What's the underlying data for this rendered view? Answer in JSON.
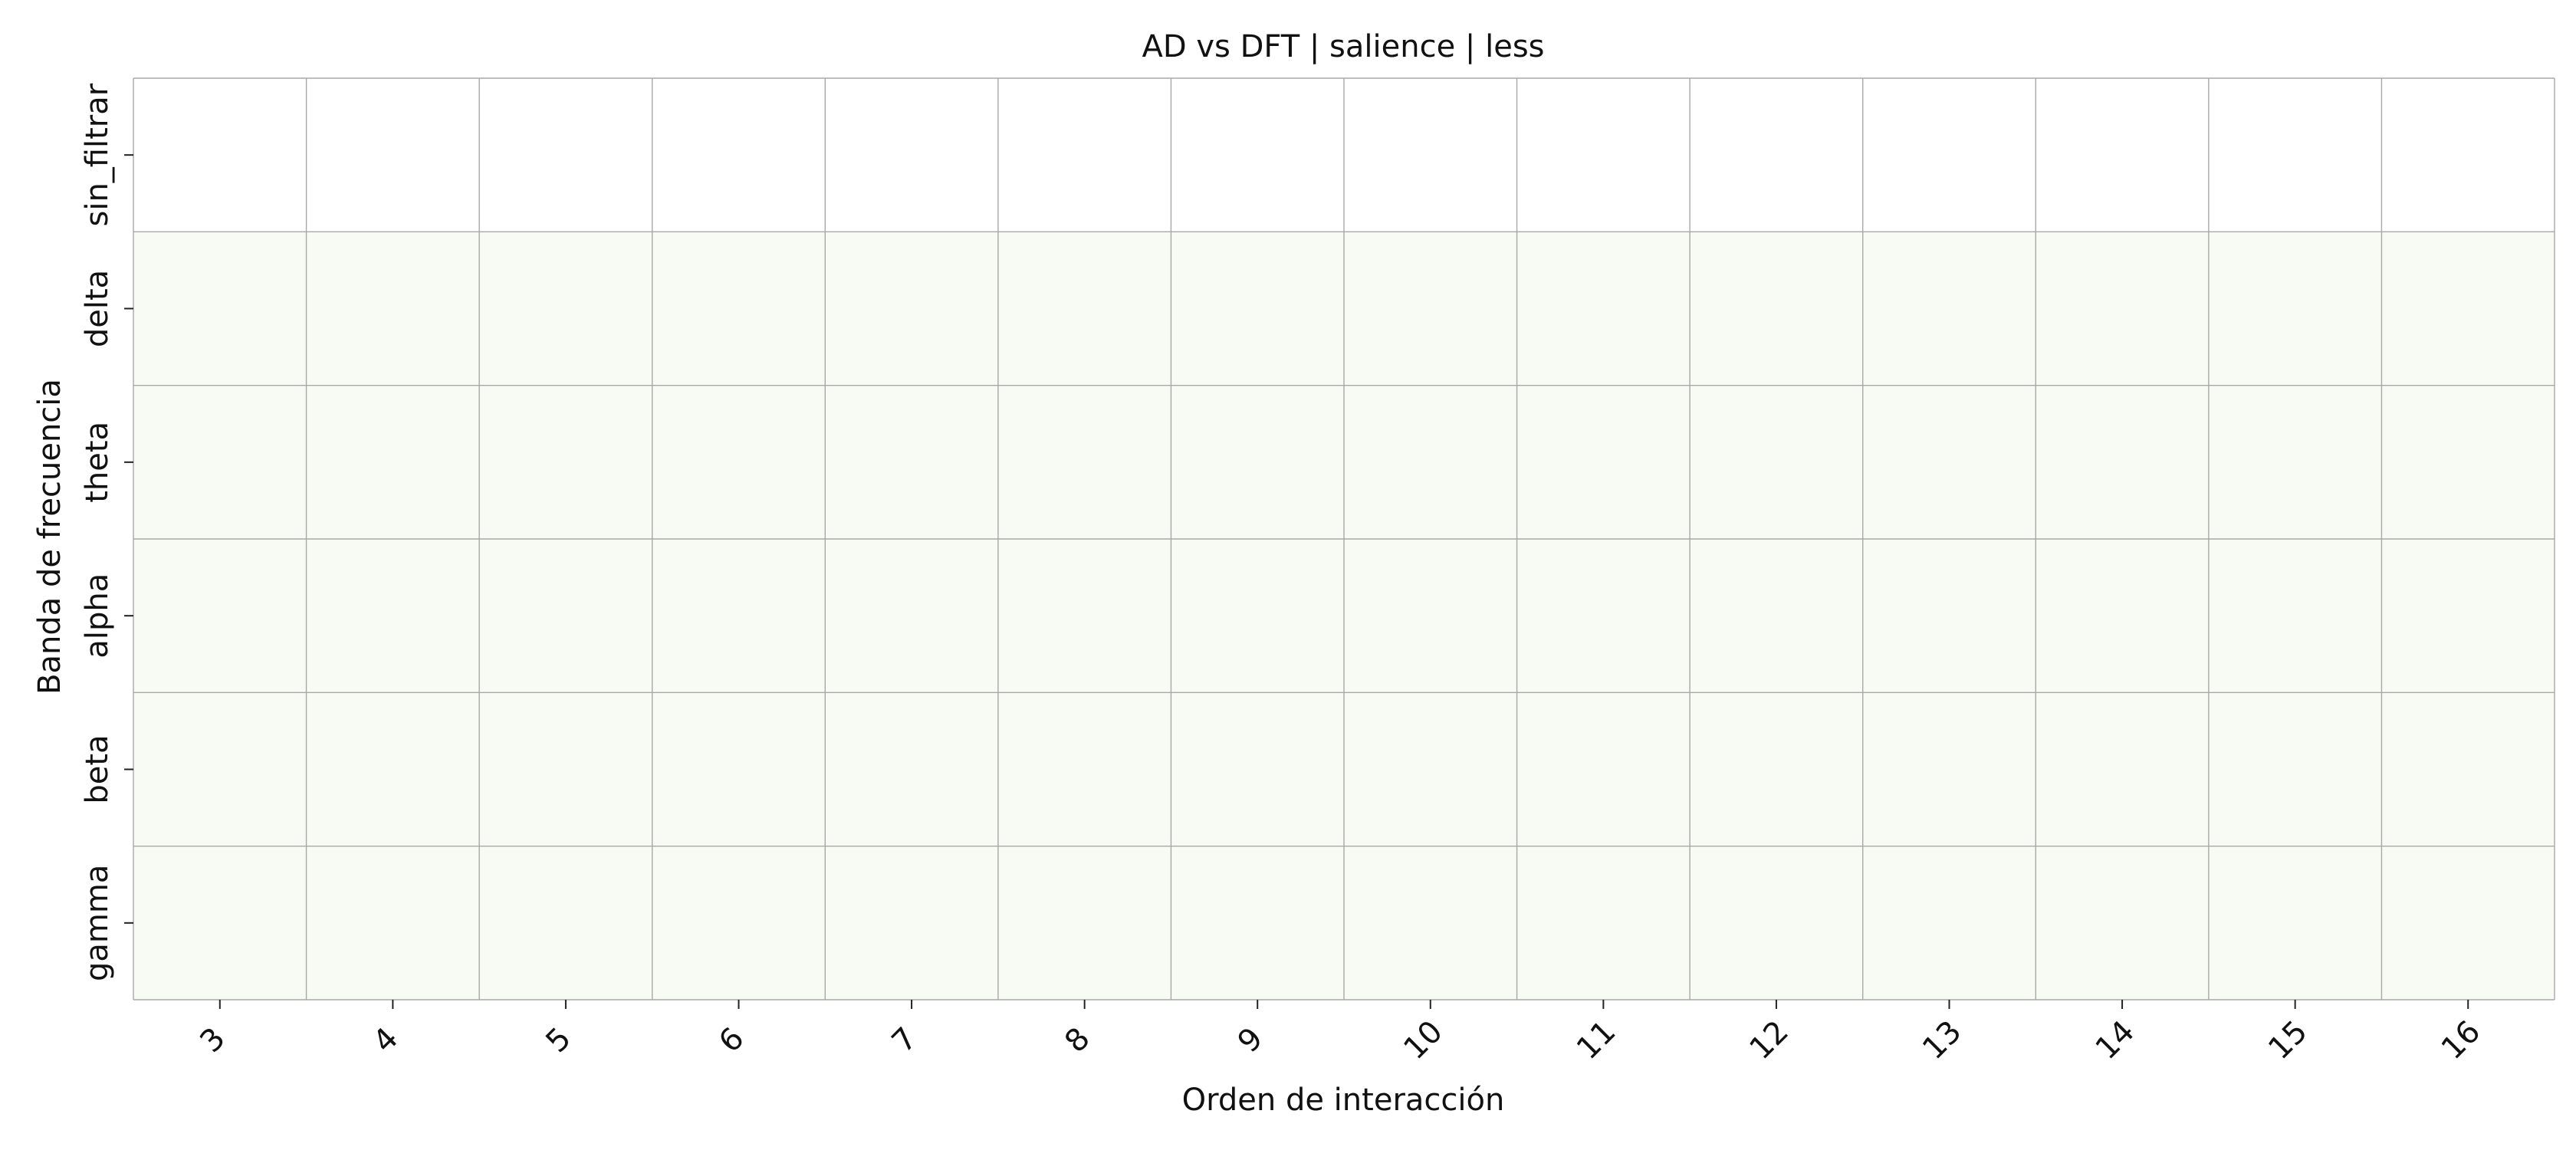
{
  "chart_data": {
    "type": "heatmap",
    "title": "AD vs DFT | salience | less",
    "xlabel": "Orden de interacción",
    "ylabel": "Banda de frecuencia",
    "x": [
      "3",
      "4",
      "5",
      "6",
      "7",
      "8",
      "9",
      "10",
      "11",
      "12",
      "13",
      "14",
      "15",
      "16"
    ],
    "y": [
      "sin_filtrar",
      "delta",
      "theta",
      "alpha",
      "beta",
      "gamma"
    ],
    "row_colors": [
      "#ffffff",
      "#f7fbf4",
      "#f7fbf4",
      "#f7fbf4",
      "#f7fbf4",
      "#f7fbf4"
    ],
    "grid": true,
    "grid_color": "#a8a8a8"
  }
}
